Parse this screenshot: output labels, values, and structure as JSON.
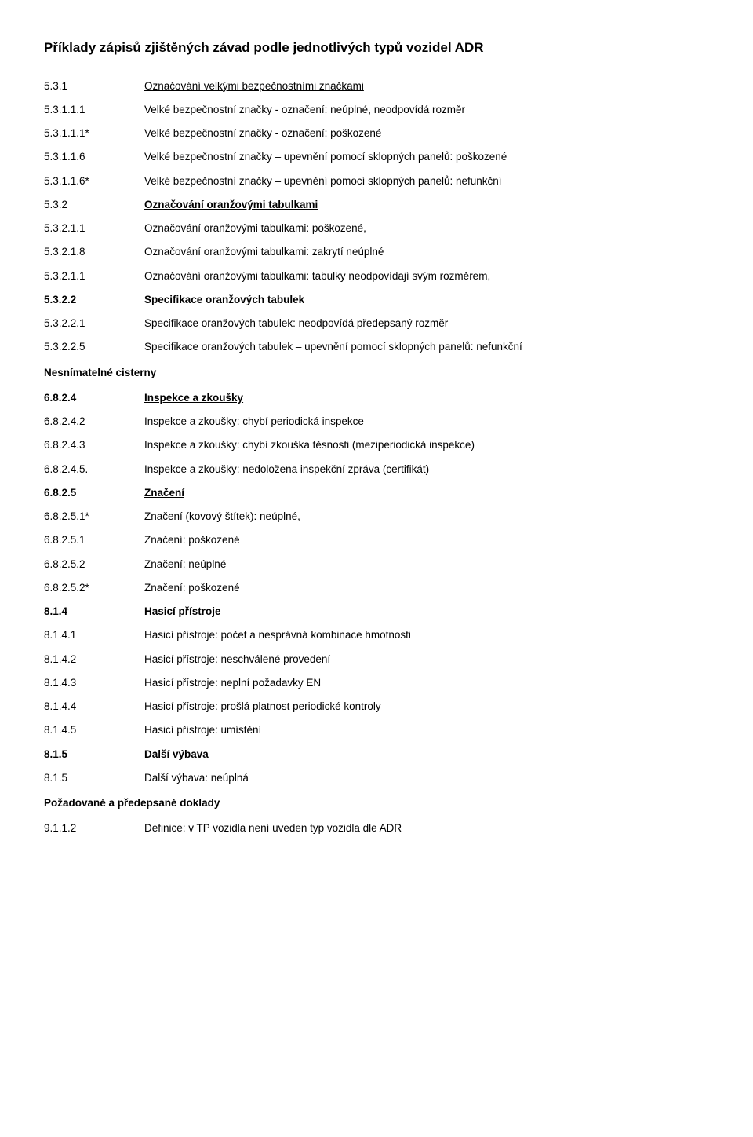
{
  "title": "Příklady zápisů zjištěných závad podle jednotlivých typů vozidel ADR",
  "entries": [
    {
      "code": "5.3.1",
      "desc": "Označování velkými bezpečnostními značkami",
      "boldCode": false,
      "boldDesc": false,
      "underline": true
    },
    {
      "code": "5.3.1.1.1",
      "desc": "Velké bezpečnostní značky - označení: neúplné, neodpovídá rozměr",
      "boldCode": false,
      "boldDesc": false,
      "underline": false
    },
    {
      "code": "5.3.1.1.1*",
      "desc": "Velké bezpečnostní značky - označení: poškozené",
      "boldCode": false,
      "boldDesc": false,
      "underline": false
    },
    {
      "code": "5.3.1.1.6",
      "desc": "Velké bezpečnostní značky – upevnění pomocí sklopných panelů: poškozené",
      "boldCode": false,
      "boldDesc": false,
      "underline": false
    },
    {
      "code": "5.3.1.1.6*",
      "desc": "Velké bezpečnostní značky – upevnění pomocí sklopných panelů: nefunkční",
      "boldCode": false,
      "boldDesc": false,
      "underline": false
    },
    {
      "code": "5.3.2",
      "desc": "Označování oranžovými tabulkami",
      "boldCode": false,
      "boldDesc": true,
      "underline": true
    },
    {
      "code": "5.3.2.1.1",
      "desc": "Označování oranžovými tabulkami: poškozené,",
      "boldCode": false,
      "boldDesc": false,
      "underline": false
    },
    {
      "code": "5.3.2.1.8",
      "desc": "Označování oranžovými tabulkami: zakrytí neúplné",
      "boldCode": false,
      "boldDesc": false,
      "underline": false
    },
    {
      "code": "5.3.2.1.1",
      "desc": "Označování oranžovými tabulkami: tabulky neodpovídají svým rozměrem,",
      "boldCode": false,
      "boldDesc": false,
      "underline": false
    },
    {
      "code": "5.3.2.2",
      "desc": "Specifikace oranžových tabulek",
      "boldCode": true,
      "boldDesc": true,
      "underline": false
    },
    {
      "code": "5.3.2.2.1",
      "desc": "Specifikace oranžových tabulek: neodpovídá předepsaný rozměr",
      "boldCode": false,
      "boldDesc": false,
      "underline": false
    },
    {
      "code": "5.3.2.2.5",
      "desc": "Specifikace oranžových tabulek – upevnění pomocí sklopných panelů: nefunkční",
      "boldCode": false,
      "boldDesc": false,
      "underline": false
    }
  ],
  "section_nesnim": "Nesnímatelné cisterny",
  "entries2": [
    {
      "code": "6.8.2.4",
      "desc": "Inspekce a zkoušky",
      "boldCode": true,
      "boldDesc": true,
      "underline": true
    },
    {
      "code": "6.8.2.4.2",
      "desc": "Inspekce a zkoušky: chybí periodická inspekce",
      "boldCode": false,
      "boldDesc": false,
      "underline": false
    },
    {
      "code": "6.8.2.4.3",
      "desc": "Inspekce a zkoušky: chybí zkouška těsnosti (meziperiodická inspekce)",
      "boldCode": false,
      "boldDesc": false,
      "underline": false
    },
    {
      "code": "6.8.2.4.5.",
      "desc": "Inspekce a zkoušky: nedoložena inspekční zpráva (certifikát)",
      "boldCode": false,
      "boldDesc": false,
      "underline": false
    },
    {
      "code": "6.8.2.5",
      "desc": "Značení",
      "boldCode": true,
      "boldDesc": true,
      "underline": true
    },
    {
      "code": "6.8.2.5.1*",
      "desc": "Značení (kovový štítek): neúplné,",
      "boldCode": false,
      "boldDesc": false,
      "underline": false
    },
    {
      "code": "6.8.2.5.1",
      "desc": "Značení: poškozené",
      "boldCode": false,
      "boldDesc": false,
      "underline": false
    },
    {
      "code": "6.8.2.5.2",
      "desc": "Značení: neúplné",
      "boldCode": false,
      "boldDesc": false,
      "underline": false
    },
    {
      "code": "6.8.2.5.2*",
      "desc": "Značení: poškozené",
      "boldCode": false,
      "boldDesc": false,
      "underline": false
    },
    {
      "code": "8.1.4",
      "desc": "Hasicí přístroje",
      "boldCode": true,
      "boldDesc": true,
      "underline": true
    },
    {
      "code": "8.1.4.1",
      "desc": "Hasicí přístroje: počet a nesprávná kombinace hmotnosti",
      "boldCode": false,
      "boldDesc": false,
      "underline": false
    },
    {
      "code": "8.1.4.2",
      "desc": "Hasicí přístroje: neschválené provedení",
      "boldCode": false,
      "boldDesc": false,
      "underline": false
    },
    {
      "code": "8.1.4.3",
      "desc": "Hasicí přístroje: neplní požadavky EN",
      "boldCode": false,
      "boldDesc": false,
      "underline": false
    },
    {
      "code": "8.1.4.4",
      "desc": "Hasicí přístroje: prošlá platnost periodické kontroly",
      "boldCode": false,
      "boldDesc": false,
      "underline": false
    },
    {
      "code": "8.1.4.5",
      "desc": "Hasicí přístroje: umístění",
      "boldCode": false,
      "boldDesc": false,
      "underline": false
    },
    {
      "code": "8.1.5",
      "desc": "Další výbava",
      "boldCode": true,
      "boldDesc": true,
      "underline": true
    },
    {
      "code": "8.1.5",
      "desc": "Další výbava: neúplná",
      "boldCode": false,
      "boldDesc": false,
      "underline": false
    }
  ],
  "section_pozad": "Požadované a předepsané doklady",
  "entries3": [
    {
      "code": "9.1.1.2",
      "desc": "Definice: v TP vozidla není uveden typ vozidla dle ADR",
      "boldCode": false,
      "boldDesc": false,
      "underline": false
    }
  ]
}
